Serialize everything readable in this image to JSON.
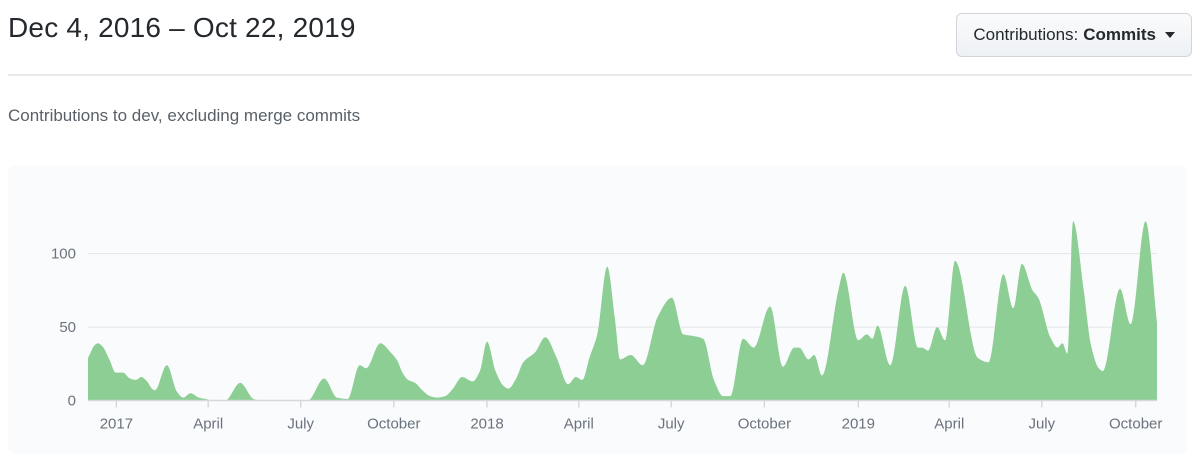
{
  "header": {
    "title": "Dec 4, 2016 – Oct 22, 2019",
    "filter_button": {
      "label_prefix": "Contributions:",
      "selected": "Commits"
    }
  },
  "subtitle": "Contributions to dev, excluding merge commits",
  "icons": {
    "dropdown_caret": "caret-down-triangle"
  },
  "colors": {
    "area_fill": "#8cce93",
    "panel_bg": "#fafbfc",
    "grid": "#e3e6e9",
    "axis": "#d6d9dc",
    "muted_text": "#6a737d",
    "title_text": "#24292e",
    "subtitle_text": "#586069"
  },
  "chart_data": {
    "type": "area",
    "series_name": "Commits",
    "x_start_date": "Dec 4, 2016",
    "x_end_date": "Oct 22, 2019",
    "x_unit": "week index from Dec 4, 2016",
    "total_weeks": 150.3,
    "ylim": [
      0,
      133
    ],
    "y_ticks": [
      0,
      50,
      100
    ],
    "y_gridlines": [
      50,
      100
    ],
    "grid": true,
    "legend": false,
    "x_ticks": [
      {
        "label": "2017",
        "week": 4.0
      },
      {
        "label": "April",
        "week": 16.9
      },
      {
        "label": "July",
        "week": 29.9
      },
      {
        "label": "October",
        "week": 43.0
      },
      {
        "label": "2018",
        "week": 56.1
      },
      {
        "label": "April",
        "week": 69.0
      },
      {
        "label": "July",
        "week": 82.0
      },
      {
        "label": "October",
        "week": 95.1
      },
      {
        "label": "2019",
        "week": 108.3
      },
      {
        "label": "April",
        "week": 121.1
      },
      {
        "label": "July",
        "week": 134.1
      },
      {
        "label": "October",
        "week": 147.3
      }
    ],
    "points": [
      [
        0,
        29
      ],
      [
        1,
        38
      ],
      [
        1.4,
        39
      ],
      [
        2,
        37
      ],
      [
        3,
        28
      ],
      [
        3.9,
        19
      ],
      [
        4.9,
        19
      ],
      [
        5.9,
        15
      ],
      [
        6.7,
        14
      ],
      [
        7.5,
        16
      ],
      [
        8.3,
        13
      ],
      [
        9,
        8
      ],
      [
        9.4,
        7
      ],
      [
        11.1,
        24
      ],
      [
        12.5,
        6
      ],
      [
        13.4,
        2
      ],
      [
        14.4,
        5
      ],
      [
        15.6,
        2
      ],
      [
        16.6,
        1
      ],
      [
        17.5,
        0
      ],
      [
        19.3,
        0
      ],
      [
        21.4,
        12
      ],
      [
        23.3,
        1
      ],
      [
        24.3,
        0
      ],
      [
        30.9,
        0
      ],
      [
        33.2,
        15
      ],
      [
        35,
        2
      ],
      [
        36.5,
        1
      ],
      [
        38.2,
        24
      ],
      [
        39.1,
        22
      ],
      [
        41.1,
        39
      ],
      [
        42.5,
        33
      ],
      [
        43.5,
        27
      ],
      [
        44.2,
        19
      ],
      [
        45,
        14
      ],
      [
        46,
        12
      ],
      [
        47,
        7
      ],
      [
        48.1,
        3
      ],
      [
        49.1,
        2
      ],
      [
        50.2,
        3
      ],
      [
        51.3,
        8
      ],
      [
        52.6,
        16
      ],
      [
        54.1,
        13
      ],
      [
        55.1,
        20
      ],
      [
        56.1,
        40
      ],
      [
        57.3,
        20
      ],
      [
        58.4,
        10
      ],
      [
        59.1,
        8
      ],
      [
        60.2,
        15
      ],
      [
        61.2,
        26
      ],
      [
        62.9,
        33
      ],
      [
        64.3,
        43
      ],
      [
        65.9,
        29
      ],
      [
        67.5,
        11
      ],
      [
        68.6,
        16
      ],
      [
        69.5,
        14
      ],
      [
        70.5,
        29
      ],
      [
        71.6,
        45
      ],
      [
        73,
        91
      ],
      [
        74.1,
        55
      ],
      [
        74.8,
        28
      ],
      [
        76.3,
        31
      ],
      [
        78,
        24
      ],
      [
        80.1,
        57
      ],
      [
        82.1,
        70
      ],
      [
        83.7,
        45
      ],
      [
        85,
        44
      ],
      [
        86.5,
        42
      ],
      [
        88,
        14
      ],
      [
        89.3,
        3
      ],
      [
        90.3,
        3
      ],
      [
        92.1,
        42
      ],
      [
        93.6,
        36
      ],
      [
        95.9,
        64
      ],
      [
        97.7,
        23
      ],
      [
        99.3,
        36
      ],
      [
        100,
        36
      ],
      [
        101.3,
        28
      ],
      [
        102.1,
        31
      ],
      [
        103.2,
        17
      ],
      [
        105.5,
        75
      ],
      [
        106.2,
        87
      ],
      [
        108.3,
        41
      ],
      [
        109.5,
        45
      ],
      [
        110.3,
        42
      ],
      [
        111,
        51
      ],
      [
        112.8,
        24
      ],
      [
        114.9,
        78
      ],
      [
        116.7,
        36
      ],
      [
        117.3,
        36
      ],
      [
        118.1,
        34
      ],
      [
        119.4,
        50
      ],
      [
        120.5,
        41
      ],
      [
        121.9,
        95
      ],
      [
        125.1,
        29
      ],
      [
        126.6,
        26
      ],
      [
        128.7,
        86
      ],
      [
        130.1,
        63
      ],
      [
        131.3,
        93
      ],
      [
        132.8,
        75
      ],
      [
        133.6,
        70
      ],
      [
        135.3,
        43
      ],
      [
        136.3,
        36
      ],
      [
        137,
        39
      ],
      [
        137.7,
        32
      ],
      [
        138.5,
        122
      ],
      [
        140,
        75
      ],
      [
        141,
        38
      ],
      [
        142.1,
        22
      ],
      [
        142.7,
        20
      ],
      [
        145.1,
        76
      ],
      [
        146.6,
        52
      ],
      [
        148.7,
        122
      ],
      [
        150.3,
        53
      ]
    ]
  }
}
